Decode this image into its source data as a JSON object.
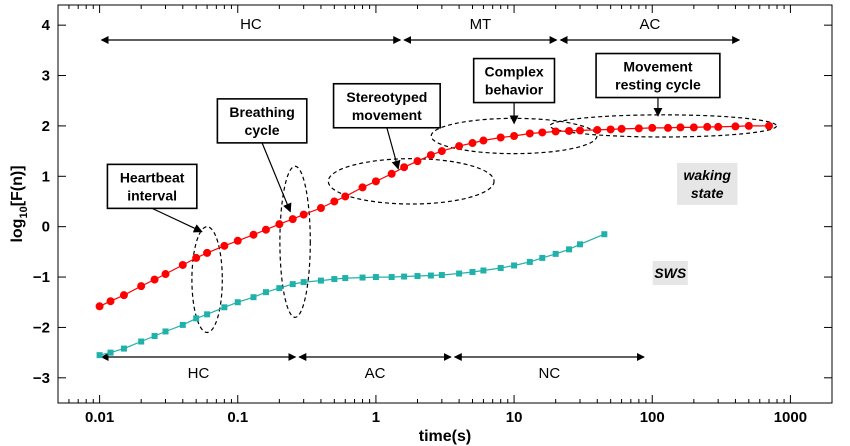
{
  "chart_data": {
    "type": "scatter",
    "xlabel": "time(s)",
    "ylabel_base": "log",
    "ylabel_sub": "10",
    "ylabel_rest": "[F(n)]",
    "x_scale": "log",
    "xlim": [
      0.005,
      2000
    ],
    "ylim": [
      -3.5,
      4.4
    ],
    "x_ticks": [
      {
        "v": 0.01,
        "label": "0.01"
      },
      {
        "v": 0.1,
        "label": "0.1"
      },
      {
        "v": 1,
        "label": "1"
      },
      {
        "v": 10,
        "label": "10"
      },
      {
        "v": 100,
        "label": "100"
      },
      {
        "v": 1000,
        "label": "1000"
      }
    ],
    "y_ticks": [
      {
        "v": 4,
        "label": "4"
      },
      {
        "v": 3,
        "label": "3"
      },
      {
        "v": 2,
        "label": "2"
      },
      {
        "v": 1,
        "label": "1"
      },
      {
        "v": 0,
        "label": "0"
      },
      {
        "v": -1,
        "label": "−1"
      },
      {
        "v": -2,
        "label": "−2"
      },
      {
        "v": -3,
        "label": "−3"
      }
    ],
    "grid": false,
    "series": [
      {
        "name": "waking state",
        "color": "#ff0000",
        "marker": "circle",
        "x": [
          0.01,
          0.012,
          0.015,
          0.02,
          0.025,
          0.03,
          0.04,
          0.05,
          0.06,
          0.08,
          0.1,
          0.13,
          0.16,
          0.2,
          0.25,
          0.3,
          0.4,
          0.5,
          0.6,
          0.8,
          1.0,
          1.3,
          1.6,
          2.0,
          2.5,
          3.0,
          4.0,
          5.0,
          6.0,
          8.0,
          10,
          13,
          16,
          20,
          25,
          30,
          40,
          50,
          60,
          80,
          100,
          130,
          160,
          200,
          250,
          300,
          400,
          500,
          700
        ],
        "y": [
          -1.58,
          -1.48,
          -1.36,
          -1.18,
          -1.05,
          -0.94,
          -0.76,
          -0.62,
          -0.52,
          -0.38,
          -0.28,
          -0.16,
          -0.06,
          0.05,
          0.15,
          0.24,
          0.37,
          0.5,
          0.6,
          0.78,
          0.9,
          1.05,
          1.18,
          1.3,
          1.42,
          1.5,
          1.6,
          1.66,
          1.71,
          1.77,
          1.8,
          1.85,
          1.87,
          1.89,
          1.9,
          1.91,
          1.92,
          1.93,
          1.94,
          1.95,
          1.96,
          1.96,
          1.97,
          1.97,
          1.98,
          1.98,
          1.99,
          2.0,
          2.0
        ]
      },
      {
        "name": "SWS",
        "color": "#20b2aa",
        "marker": "square",
        "x": [
          0.01,
          0.012,
          0.015,
          0.02,
          0.025,
          0.03,
          0.04,
          0.05,
          0.06,
          0.08,
          0.1,
          0.13,
          0.16,
          0.2,
          0.25,
          0.3,
          0.4,
          0.5,
          0.6,
          0.8,
          1.0,
          1.3,
          1.6,
          2.0,
          2.5,
          3.0,
          4.0,
          5.0,
          6.0,
          8.0,
          10,
          13,
          16,
          20,
          25,
          30,
          45
        ],
        "y": [
          -2.55,
          -2.5,
          -2.42,
          -2.28,
          -2.17,
          -2.08,
          -1.95,
          -1.82,
          -1.74,
          -1.6,
          -1.5,
          -1.4,
          -1.3,
          -1.22,
          -1.14,
          -1.1,
          -1.07,
          -1.04,
          -1.02,
          -1.01,
          -1.0,
          -1.0,
          -0.99,
          -0.98,
          -0.97,
          -0.96,
          -0.93,
          -0.9,
          -0.87,
          -0.82,
          -0.77,
          -0.7,
          -0.62,
          -0.54,
          -0.45,
          -0.35,
          -0.15
        ]
      }
    ],
    "series_labels": [
      {
        "text": "waking state",
        "lines": [
          "waking",
          "state"
        ],
        "x": 250,
        "y": 0.85
      },
      {
        "text": "SWS",
        "lines": [
          "SWS"
        ],
        "x": 135,
        "y": -0.92
      }
    ],
    "top_regions": [
      {
        "label": "HC",
        "x0": 0.01,
        "x1": 1.55
      },
      {
        "label": "MT",
        "x0": 1.55,
        "x1": 21
      },
      {
        "label": "AC",
        "x0": 21,
        "x1": 440
      }
    ],
    "bottom_regions": [
      {
        "label": "HC",
        "x0": 0.01,
        "x1": 0.27
      },
      {
        "label": "AC",
        "x0": 0.27,
        "x1": 3.6
      },
      {
        "label": "NC",
        "x0": 3.6,
        "x1": 90
      }
    ],
    "annotations": [
      {
        "lines": [
          "Heartbeat",
          "interval"
        ],
        "box_x": 0.024,
        "box_y": 0.8,
        "arrow_x": 0.055,
        "arrow_y": -0.1,
        "ellipse": {
          "cx": 0.06,
          "cy": -1.05,
          "rx": 0.11,
          "ry": 1.05
        }
      },
      {
        "lines": [
          "Breathing",
          "cycle"
        ],
        "box_x": 0.15,
        "box_y": 2.1,
        "arrow_x": 0.24,
        "arrow_y": 0.3,
        "ellipse": {
          "cx": 0.26,
          "cy": -0.3,
          "rx": 0.11,
          "ry": 1.5
        }
      },
      {
        "lines": [
          "Stereotyped",
          "movement"
        ],
        "box_x": 1.2,
        "box_y": 2.4,
        "arrow_x": 1.45,
        "arrow_y": 1.15,
        "ellipse": {
          "cx": 1.8,
          "cy": 0.9,
          "rx": 0.6,
          "ry": 0.45
        }
      },
      {
        "lines": [
          "Complex",
          "behavior"
        ],
        "box_x": 10,
        "box_y": 2.9,
        "arrow_x": 10,
        "arrow_y": 2.05,
        "ellipse": {
          "cx": 10,
          "cy": 1.8,
          "rx": 0.6,
          "ry": 0.35
        }
      },
      {
        "lines": [
          "Movement",
          "resting cycle"
        ],
        "box_x": 110,
        "box_y": 3.0,
        "arrow_x": 110,
        "arrow_y": 2.2,
        "ellipse": {
          "cx": 120,
          "cy": 2.0,
          "rx": 0.82,
          "ry": 0.22
        }
      }
    ]
  }
}
